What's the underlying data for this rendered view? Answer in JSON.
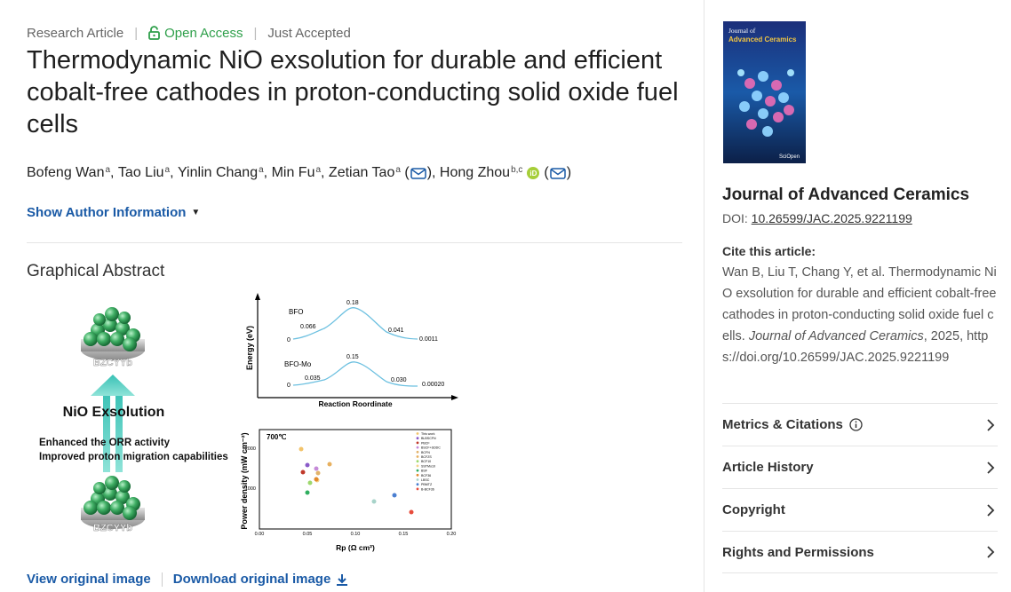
{
  "article": {
    "type": "Research Article",
    "access": "Open Access",
    "status": "Just Accepted",
    "title": "Thermodynamic NiO exsolution for durable and efficient cobalt-free cathodes in proton-conducting solid oxide fuel cells",
    "authors": [
      {
        "name": "Bofeng Wan",
        "aff": "a"
      },
      {
        "name": "Tao Liu",
        "aff": "a"
      },
      {
        "name": "Yinlin Chang",
        "aff": "a"
      },
      {
        "name": "Min Fu",
        "aff": "a"
      },
      {
        "name": "Zetian Tao",
        "aff": "a"
      },
      {
        "name": "Hong Zhou",
        "aff": "b,c"
      }
    ],
    "show_author_info": "Show Author Information"
  },
  "graphical_abstract": {
    "heading": "Graphical Abstract",
    "view_link": "View original image",
    "download_link": "Download original image",
    "figure": {
      "bzcyyb_label": "BZCYYb",
      "exsolution_label": "NiO Exsolution",
      "bullet_1": "Enhanced the ORR activity",
      "bullet_2": "Improved proton migration capabilities",
      "energy_ylabel": "Energy (eV)",
      "energy_xlabel": "Reaction Roordinate",
      "bfo_label": "BFO",
      "bfomo_label": "BFO-Mo",
      "bfo_values": [
        "0",
        "0.066",
        "0.18",
        "0.041",
        "0.0011"
      ],
      "bfomo_values": [
        "0",
        "0.035",
        "0.15",
        "0.030",
        "0.00020"
      ],
      "power_temp": "700℃",
      "power_ylabel": "Power density (mW cm⁻²)",
      "power_xlabel": "Rp (Ω cm²)",
      "power_yticks": [
        "2000",
        "1000"
      ],
      "power_xticks": [
        "0.00",
        "0.05",
        "0.10",
        "0.15",
        "0.20"
      ],
      "legend": [
        "This work",
        "BLBSCFN",
        "PBCF",
        "BSCF+SDDC",
        "BCFN",
        "BCFZS",
        "BCF10",
        "SSTMo10",
        "BSF",
        "BCF36",
        "LBSC",
        "PBMTZ",
        "B-BCF36"
      ]
    }
  },
  "sidebar": {
    "journal_name": "Journal of Advanced Ceramics",
    "doi_prefix": "DOI:",
    "doi": "10.26599/JAC.2025.9221199",
    "cite_label": "Cite this article:",
    "cite_text_1": "Wan B, Liu T, Chang Y, et al. Thermodynamic NiO exsolution for durable and efficient cobalt-free cathodes in proton-conducting solid oxide fuel cells.",
    "cite_journal": "Journal of Advanced Ceramics",
    "cite_text_2": ", 2025, https://doi.org/10.26599/JAC.2025.9221199",
    "cover": {
      "journal_line_1": "Journal of",
      "journal_line_2": "Advanced Ceramics",
      "footer": "SciOpen"
    },
    "sections": [
      {
        "label": "Metrics & Citations"
      },
      {
        "label": "Article History"
      },
      {
        "label": "Copyright"
      },
      {
        "label": "Rights and Permissions"
      }
    ]
  },
  "colors": {
    "link": "#1a5aa6",
    "open_access": "#2e9f4a",
    "orcid": "#a6ce39"
  },
  "icons": {
    "lock": "open-lock-icon",
    "mail": "mail-icon",
    "orcid": "orcid-icon",
    "caret": "caret-down-icon",
    "download": "download-icon",
    "info": "info-icon",
    "chevron": "chevron-right-icon"
  }
}
